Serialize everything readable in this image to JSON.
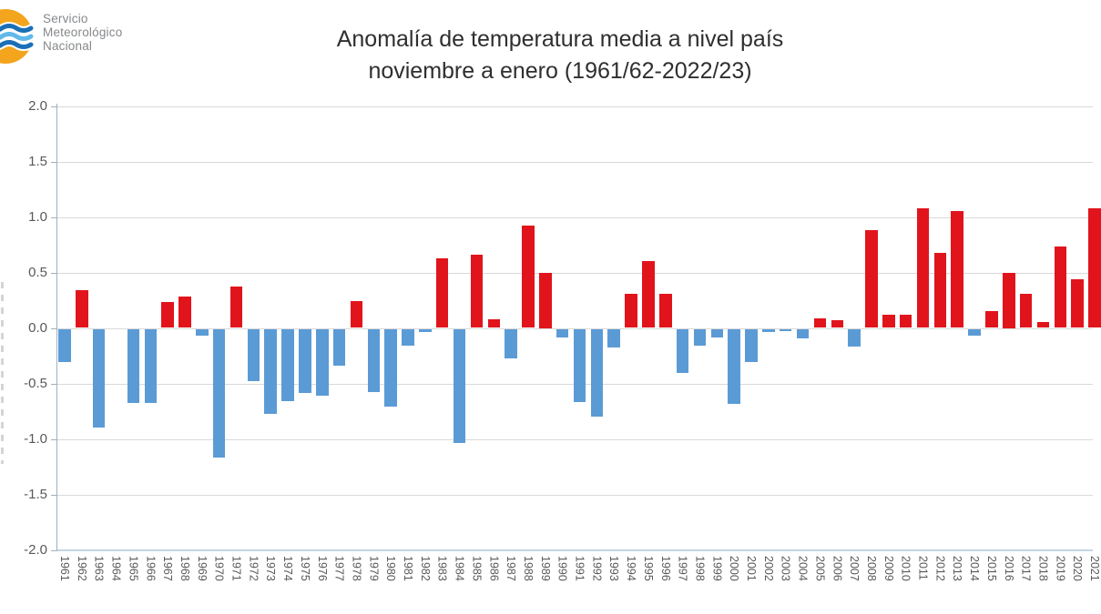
{
  "logo": {
    "lines": [
      "Servicio",
      "Meteorológico",
      "Nacional"
    ],
    "colors": {
      "sun": "#f3a51e",
      "wave_dark": "#1a6fb7",
      "wave_light": "#62b9e9"
    }
  },
  "title": {
    "line1": "Anomalía de temperatura media a nivel país",
    "line2": "noviembre a enero (1961/62-2022/23)"
  },
  "chart_data": {
    "type": "bar",
    "title": "Anomalía de temperatura media a nivel país noviembre a enero (1961/62-2022/23)",
    "xlabel": "",
    "ylabel": "",
    "ylim": [
      -2.0,
      2.0
    ],
    "ytick_step": 0.5,
    "y_tick_labels": [
      "2.0",
      "1.5",
      "1.0",
      "0.5",
      "0.0",
      "-0.5",
      "-1.0",
      "-1.5",
      "-2.0"
    ],
    "grid": "horizontal",
    "legend": "none",
    "positive_color": "#e1141c",
    "negative_color": "#5b9bd5",
    "gridline_color": "#d9d9d9",
    "axis_label_color": "#595959",
    "categories": [
      1961,
      1962,
      1963,
      1964,
      1965,
      1966,
      1967,
      1968,
      1969,
      1970,
      1971,
      1972,
      1973,
      1974,
      1975,
      1976,
      1977,
      1978,
      1979,
      1980,
      1981,
      1982,
      1983,
      1984,
      1985,
      1986,
      1987,
      1988,
      1989,
      1990,
      1991,
      1992,
      1993,
      1994,
      1995,
      1996,
      1997,
      1998,
      1999,
      2000,
      2001,
      2002,
      2003,
      2004,
      2005,
      2006,
      2007,
      2008,
      2009,
      2010,
      2011,
      2012,
      2013,
      2014,
      2015,
      2016,
      2017,
      2018,
      2019,
      2020,
      2021
    ],
    "values": [
      -0.3,
      0.34,
      -0.89,
      0.0,
      -0.67,
      -0.67,
      0.23,
      0.28,
      -0.06,
      -1.16,
      0.37,
      -0.47,
      -0.77,
      -0.65,
      -0.58,
      -0.6,
      -0.33,
      0.24,
      -0.57,
      -0.7,
      -0.15,
      -0.03,
      0.63,
      -1.03,
      0.66,
      0.08,
      -0.27,
      0.92,
      0.5,
      -0.08,
      -0.66,
      -0.79,
      -0.17,
      0.31,
      0.6,
      0.31,
      -0.4,
      -0.15,
      -0.08,
      -0.68,
      -0.3,
      -0.03,
      -0.02,
      -0.09,
      0.09,
      0.07,
      -0.16,
      0.88,
      0.12,
      0.12,
      1.08,
      0.68,
      1.05,
      -0.06,
      0.15,
      0.5,
      0.31,
      0.05,
      0.73,
      0.44,
      1.08
    ]
  }
}
